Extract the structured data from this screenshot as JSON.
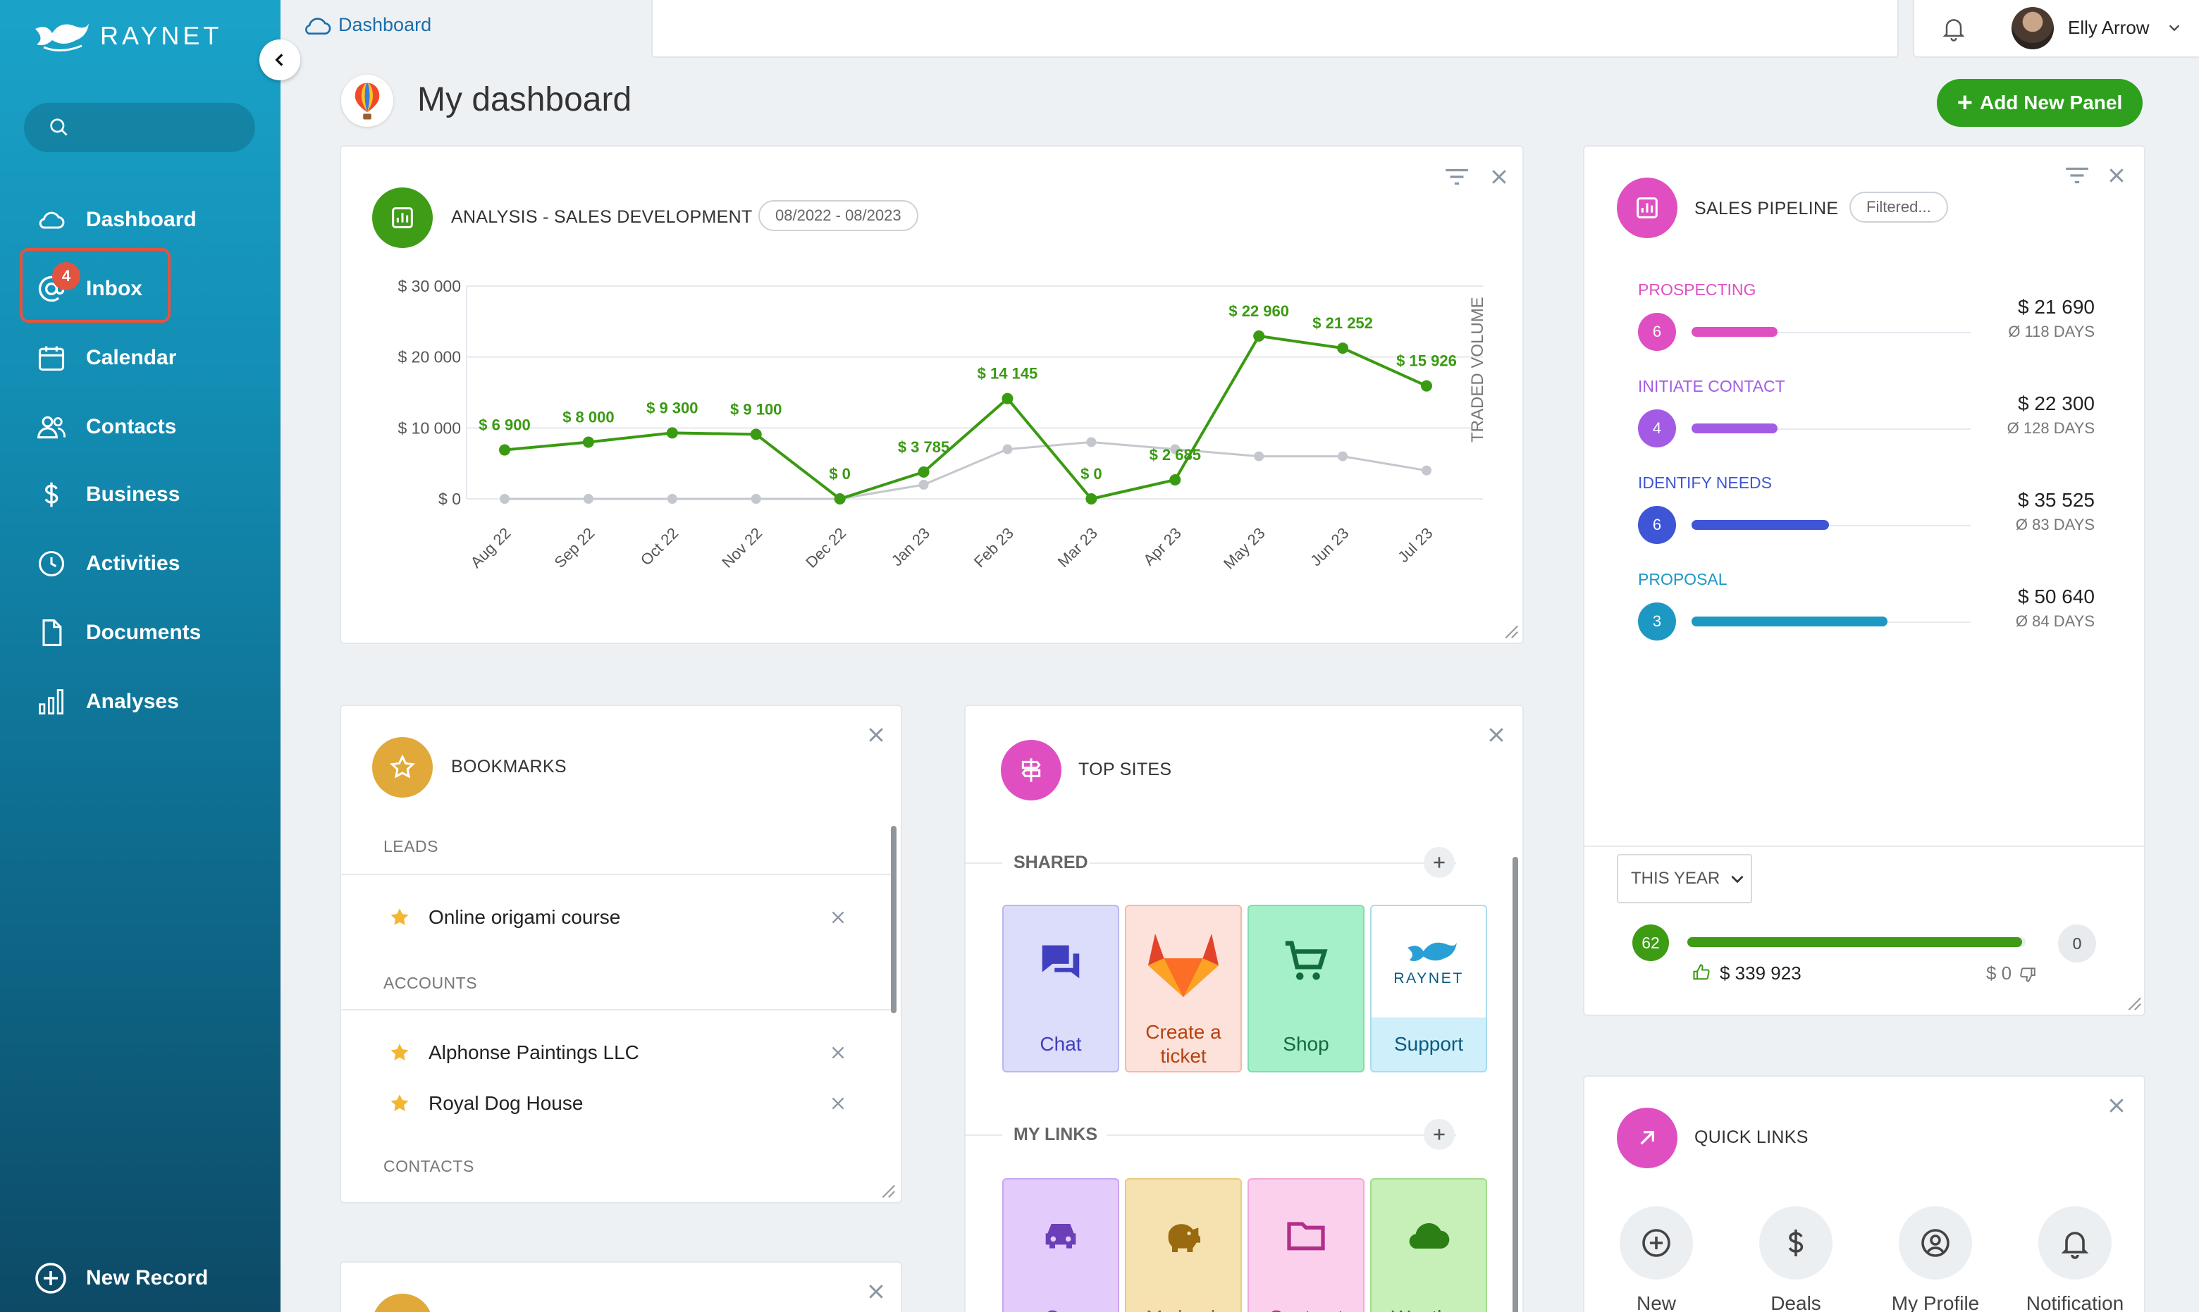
{
  "app": {
    "logo_text": "RAYNET"
  },
  "sidebar": {
    "search_placeholder": "",
    "items": [
      {
        "label": "Dashboard",
        "icon": "cloud-icon"
      },
      {
        "label": "Inbox",
        "icon": "at-sign-icon",
        "badge": "4"
      },
      {
        "label": "Calendar",
        "icon": "calendar-icon"
      },
      {
        "label": "Contacts",
        "icon": "people-icon"
      },
      {
        "label": "Business",
        "icon": "dollar-icon"
      },
      {
        "label": "Activities",
        "icon": "clock-icon"
      },
      {
        "label": "Documents",
        "icon": "document-icon"
      },
      {
        "label": "Analyses",
        "icon": "bar-chart-icon"
      }
    ],
    "new_record": "New Record"
  },
  "topbar": {
    "breadcrumb": "Dashboard",
    "user_name": "Elly Arrow"
  },
  "page": {
    "title": "My dashboard",
    "add_panel": "Add New Panel"
  },
  "analysis": {
    "title": "ANALYSIS - SALES DEVELOPMENT",
    "period": "08/2022 - 08/2023",
    "side_label": "TRADED VOLUME"
  },
  "chart_data": {
    "type": "line",
    "categories": [
      "Aug 22",
      "Sep 22",
      "Oct 22",
      "Nov 22",
      "Dec 22",
      "Jan 23",
      "Feb 23",
      "Mar 23",
      "Apr 23",
      "May 23",
      "Jun 23",
      "Jul 23"
    ],
    "y_ticks": [
      "$ 30 000",
      "$ 20 000",
      "$ 10 000",
      "$ 0"
    ],
    "ylim": [
      0,
      30000
    ],
    "grid": true,
    "ylabel": "TRADED VOLUME",
    "series": [
      {
        "color": "#3a9a12",
        "values": [
          6900,
          8000,
          9300,
          9100,
          0,
          3785,
          14145,
          0,
          2685,
          22960,
          21252,
          15926
        ],
        "labels": [
          "$ 6 900",
          "$ 8 000",
          "$ 9 300",
          "$ 9 100",
          "$ 0",
          "$ 3 785",
          "$ 14 145",
          "$ 0",
          "$ 2 685",
          "$ 22 960",
          "$ 21 252",
          "$ 15 926"
        ]
      },
      {
        "color": "#c4c7cd",
        "values": [
          0,
          0,
          0,
          0,
          0,
          2000,
          7000,
          8000,
          7000,
          6000,
          6000,
          4000
        ]
      }
    ]
  },
  "pipeline": {
    "title": "SALES PIPELINE",
    "filter": "Filtered...",
    "stages": [
      {
        "name": "PROSPECTING",
        "count": "6",
        "amount": "$ 21 690",
        "days": "Ø 118 DAYS",
        "color": "#e04fc2",
        "fill": 0.22
      },
      {
        "name": "INITIATE CONTACT",
        "count": "4",
        "amount": "$ 22 300",
        "days": "Ø 128 DAYS",
        "color": "#a35be6",
        "fill": 0.22
      },
      {
        "name": "IDENTIFY NEEDS",
        "count": "6",
        "amount": "$ 35 525",
        "days": "Ø 83 DAYS",
        "color": "#3e55d6",
        "fill": 0.35
      },
      {
        "name": "PROPOSAL",
        "count": "3",
        "amount": "$ 50 640",
        "days": "Ø 84 DAYS",
        "color": "#1c98c3",
        "fill": 0.5
      }
    ],
    "period_select": "THIS YEAR",
    "won_count": "62",
    "won_amount": "$ 339 923",
    "lost_count": "0",
    "lost_amount": "$ 0",
    "win_ratio": 0.99
  },
  "bookmarks": {
    "title": "BOOKMARKS",
    "sections": [
      {
        "label": "LEADS",
        "items": [
          "Online origami course"
        ]
      },
      {
        "label": "ACCOUNTS",
        "items": [
          "Alphonse Paintings LLC",
          "Royal Dog House"
        ]
      },
      {
        "label": "CONTACTS",
        "items": []
      }
    ]
  },
  "top_sites": {
    "title": "TOP SITES",
    "shared_label": "SHARED",
    "shared": [
      {
        "label": "Chat",
        "icon": "chat-icon",
        "bg": "#dcdcfb",
        "border": "#b9b9f0",
        "fg": "#3f3fbf"
      },
      {
        "label": "Create a ticket",
        "icon": "gitlab-icon",
        "bg": "#fde2db",
        "border": "#f5b8a8",
        "fg": "#b8410f"
      },
      {
        "label": "Shop",
        "icon": "cart-icon",
        "bg": "#a5efc9",
        "border": "#82dcac",
        "fg": "#116b3d"
      },
      {
        "label": "Support",
        "icon": "raynet-icon",
        "bg": "#cfeffa",
        "border": "#a9dcee",
        "fg": "#0b5a82"
      }
    ],
    "links_label": "MY LINKS",
    "links": [
      {
        "label": "Car",
        "icon": "car-icon",
        "bg": "#e3ccfb",
        "border": "#caa5f2",
        "fg": "#6b3fb8"
      },
      {
        "label": "My bank",
        "icon": "piggy-bank-icon",
        "bg": "#f6e1b0",
        "border": "#eccb7f",
        "fg": "#9a6a10"
      },
      {
        "label": "Contract",
        "icon": "folder-icon",
        "bg": "#fbd0ec",
        "border": "#f1a8d8",
        "fg": "#b12f8b"
      },
      {
        "label": "Weather",
        "icon": "cloud-icon",
        "bg": "#c6f0b7",
        "border": "#a0dc8c",
        "fg": "#2c7f15"
      }
    ]
  },
  "quick_links": {
    "title": "QUICK LINKS",
    "items": [
      {
        "label": "New",
        "icon": "plus-circle-icon"
      },
      {
        "label": "Deals",
        "icon": "dollar-icon"
      },
      {
        "label": "My Profile",
        "icon": "user-icon"
      },
      {
        "label": "Notification",
        "icon": "bell-icon"
      }
    ]
  },
  "colors": {
    "accent": "#2ea01e",
    "inbox_highlight": "#e35440"
  }
}
